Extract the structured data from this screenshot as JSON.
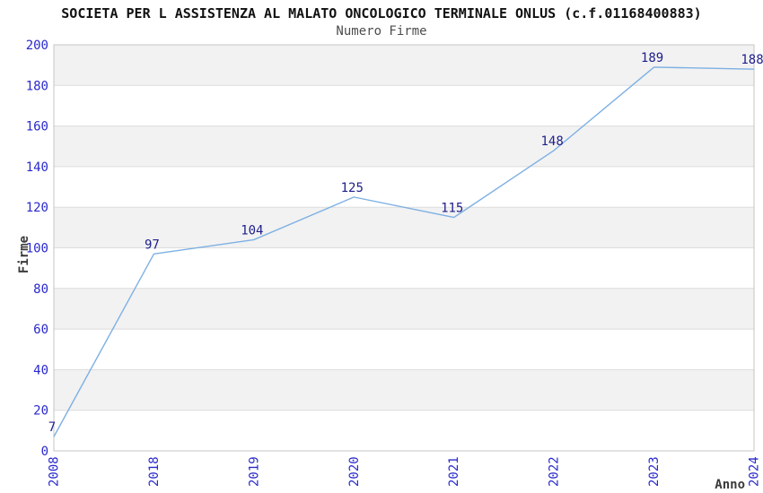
{
  "header": {
    "title": "SOCIETA PER L ASSISTENZA AL MALATO ONCOLOGICO TERMINALE ONLUS (c.f.01168400883)",
    "subtitle": "Numero Firme"
  },
  "chart_data": {
    "type": "line",
    "title": "SOCIETA PER L ASSISTENZA AL MALATO ONCOLOGICO TERMINALE ONLUS (c.f.01168400883)",
    "subtitle": "Numero Firme",
    "categories": [
      "2008",
      "2018",
      "2019",
      "2020",
      "2021",
      "2022",
      "2023",
      "2024"
    ],
    "values": [
      7,
      97,
      104,
      125,
      115,
      148,
      189,
      188
    ],
    "xlabel": "Anno",
    "ylabel": "Firme",
    "ylim": [
      0,
      200
    ],
    "ytick_step": 20,
    "yticks": [
      0,
      20,
      40,
      60,
      80,
      100,
      120,
      140,
      160,
      180,
      200
    ],
    "grid": "alternating-horizontal-bands",
    "legend": "none",
    "point_labels_visible": true,
    "colors": {
      "line": "#7db0e3",
      "tick_labels": "#2929cc",
      "point_labels": "#20208c",
      "band": "#f2f2f2",
      "gridline": "#dcdcdc",
      "plot_border": "#c4c4c4",
      "axis_titles": "#3a3a3a",
      "title": "#111111",
      "subtitle": "#4d4d4d",
      "background": "#ffffff"
    }
  }
}
